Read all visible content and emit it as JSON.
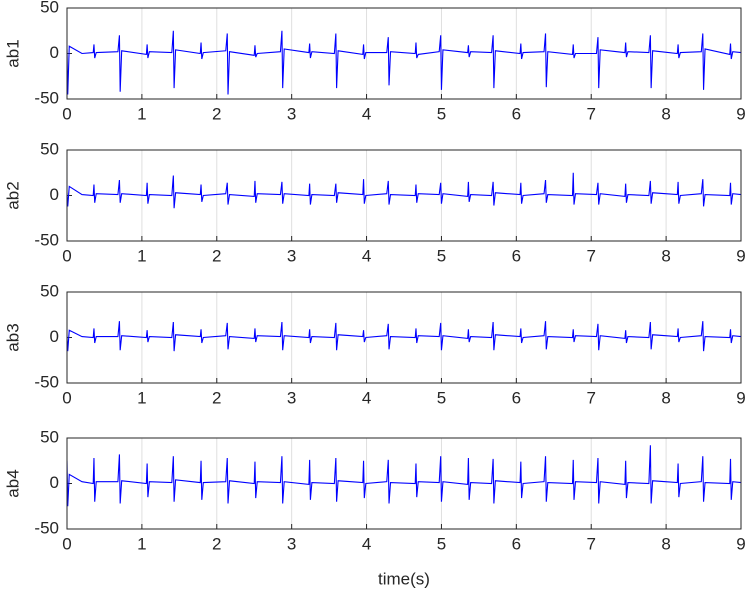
{
  "chart_data": [
    {
      "type": "line",
      "ylabel": "ab1",
      "xlim": [
        0,
        9
      ],
      "xticks": [
        0,
        1,
        2,
        3,
        4,
        5,
        6,
        7,
        8,
        9
      ],
      "ylim": [
        -50,
        50
      ],
      "yticks": [
        -50,
        0,
        50
      ],
      "xgrid": true,
      "color": "#0000ff",
      "x": [
        0,
        0.01,
        0.03,
        0.2,
        0.35,
        0.36,
        0.37,
        0.39,
        0.68,
        0.7,
        0.71,
        0.73,
        1.06,
        1.07,
        1.08,
        1.1,
        1.4,
        1.42,
        1.43,
        1.45,
        1.78,
        1.79,
        1.8,
        1.82,
        2.12,
        2.14,
        2.15,
        2.17,
        2.5,
        2.51,
        2.52,
        2.54,
        2.85,
        2.87,
        2.88,
        2.9,
        3.23,
        3.24,
        3.25,
        3.27,
        3.57,
        3.59,
        3.6,
        3.62,
        3.95,
        3.96,
        3.97,
        3.99,
        4.27,
        4.29,
        4.3,
        4.32,
        4.65,
        4.66,
        4.67,
        4.69,
        4.97,
        4.99,
        5.0,
        5.02,
        5.35,
        5.36,
        5.37,
        5.39,
        5.67,
        5.69,
        5.7,
        5.72,
        6.05,
        6.06,
        6.07,
        6.09,
        6.37,
        6.39,
        6.4,
        6.42,
        6.75,
        6.76,
        6.77,
        6.79,
        7.07,
        7.09,
        7.1,
        7.12,
        7.45,
        7.46,
        7.47,
        7.49,
        7.77,
        7.79,
        7.8,
        7.82,
        8.15,
        8.16,
        8.17,
        8.19,
        8.47,
        8.49,
        8.5,
        8.52,
        8.85,
        8.86,
        8.87,
        8.89,
        9
      ],
      "values": [
        5,
        -45,
        8,
        0,
        1,
        10,
        -5,
        1,
        2,
        20,
        -42,
        3,
        -1,
        10,
        -5,
        2,
        1,
        25,
        -38,
        4,
        0,
        12,
        -6,
        1,
        3,
        22,
        -45,
        2,
        -2,
        9,
        -4,
        0,
        2,
        25,
        -38,
        5,
        1,
        11,
        -5,
        2,
        0,
        22,
        -38,
        3,
        -1,
        10,
        -6,
        1,
        1,
        18,
        -35,
        2,
        0,
        12,
        -5,
        -1,
        2,
        20,
        -40,
        4,
        1,
        9,
        -4,
        2,
        1,
        20,
        -38,
        3,
        0,
        11,
        -6,
        1,
        2,
        22,
        -37,
        2,
        -1,
        10,
        -5,
        0,
        0,
        18,
        -38,
        4,
        1,
        12,
        -4,
        2,
        1,
        20,
        -38,
        3,
        0,
        10,
        -5,
        1,
        2,
        22,
        -40,
        5,
        -1,
        11,
        -6,
        2,
        1
      ]
    },
    {
      "type": "line",
      "ylabel": "ab2",
      "xlim": [
        0,
        9
      ],
      "xticks": [
        0,
        1,
        2,
        3,
        4,
        5,
        6,
        7,
        8,
        9
      ],
      "ylim": [
        -50,
        50
      ],
      "yticks": [
        -50,
        0,
        50
      ],
      "xgrid": true,
      "color": "#0000ff",
      "x": [
        0,
        0.01,
        0.03,
        0.2,
        0.35,
        0.36,
        0.37,
        0.39,
        0.68,
        0.7,
        0.71,
        0.73,
        1.06,
        1.07,
        1.08,
        1.1,
        1.4,
        1.42,
        1.43,
        1.45,
        1.78,
        1.79,
        1.8,
        1.82,
        2.12,
        2.14,
        2.15,
        2.17,
        2.5,
        2.51,
        2.52,
        2.54,
        2.85,
        2.87,
        2.88,
        2.9,
        3.23,
        3.24,
        3.25,
        3.27,
        3.57,
        3.59,
        3.6,
        3.62,
        3.95,
        3.96,
        3.97,
        3.99,
        4.27,
        4.29,
        4.3,
        4.32,
        4.65,
        4.66,
        4.67,
        4.69,
        4.97,
        4.99,
        5.0,
        5.02,
        5.35,
        5.36,
        5.37,
        5.39,
        5.67,
        5.69,
        5.7,
        5.72,
        6.05,
        6.06,
        6.07,
        6.09,
        6.37,
        6.39,
        6.4,
        6.42,
        6.75,
        6.76,
        6.77,
        6.79,
        7.07,
        7.09,
        7.1,
        7.12,
        7.45,
        7.46,
        7.47,
        7.49,
        7.77,
        7.79,
        7.8,
        7.82,
        8.15,
        8.16,
        8.17,
        8.19,
        8.47,
        8.49,
        8.5,
        8.52,
        8.85,
        8.86,
        8.87,
        8.89,
        9
      ],
      "values": [
        3,
        -12,
        10,
        1,
        0,
        12,
        -8,
        2,
        1,
        17,
        -8,
        2,
        0,
        14,
        -9,
        1,
        0,
        22,
        -14,
        3,
        1,
        12,
        -7,
        0,
        2,
        14,
        -10,
        1,
        -1,
        16,
        -8,
        2,
        1,
        15,
        -9,
        2,
        0,
        13,
        -10,
        1,
        0,
        13,
        -8,
        3,
        1,
        18,
        -9,
        0,
        2,
        16,
        -10,
        1,
        0,
        12,
        -8,
        2,
        1,
        14,
        -9,
        2,
        -1,
        15,
        -7,
        1,
        0,
        15,
        -11,
        3,
        1,
        14,
        -9,
        0,
        2,
        17,
        -8,
        1,
        0,
        25,
        -10,
        2,
        1,
        14,
        -10,
        2,
        -1,
        13,
        -8,
        1,
        0,
        16,
        -9,
        3,
        1,
        15,
        -9,
        0,
        2,
        18,
        -12,
        1,
        0,
        14,
        -10,
        2,
        1
      ]
    },
    {
      "type": "line",
      "ylabel": "ab3",
      "xlim": [
        0,
        9
      ],
      "xticks": [
        0,
        1,
        2,
        3,
        4,
        5,
        6,
        7,
        8,
        9
      ],
      "ylim": [
        -50,
        50
      ],
      "yticks": [
        -50,
        0,
        50
      ],
      "xgrid": true,
      "color": "#0000ff",
      "x": [
        0,
        0.01,
        0.03,
        0.2,
        0.35,
        0.36,
        0.37,
        0.39,
        0.68,
        0.7,
        0.71,
        0.73,
        1.06,
        1.07,
        1.08,
        1.1,
        1.4,
        1.42,
        1.43,
        1.45,
        1.78,
        1.79,
        1.8,
        1.82,
        2.12,
        2.14,
        2.15,
        2.17,
        2.5,
        2.51,
        2.52,
        2.54,
        2.85,
        2.87,
        2.88,
        2.9,
        3.23,
        3.24,
        3.25,
        3.27,
        3.57,
        3.59,
        3.6,
        3.62,
        3.95,
        3.96,
        3.97,
        3.99,
        4.27,
        4.29,
        4.3,
        4.32,
        4.65,
        4.66,
        4.67,
        4.69,
        4.97,
        4.99,
        5.0,
        5.02,
        5.35,
        5.36,
        5.37,
        5.39,
        5.67,
        5.69,
        5.7,
        5.72,
        6.05,
        6.06,
        6.07,
        6.09,
        6.37,
        6.39,
        6.4,
        6.42,
        6.75,
        6.76,
        6.77,
        6.79,
        7.07,
        7.09,
        7.1,
        7.12,
        7.45,
        7.46,
        7.47,
        7.49,
        7.77,
        7.79,
        7.8,
        7.82,
        8.15,
        8.16,
        8.17,
        8.19,
        8.47,
        8.49,
        8.5,
        8.52,
        8.85,
        8.86,
        8.87,
        8.89,
        9
      ],
      "values": [
        2,
        -15,
        8,
        1,
        0,
        10,
        -6,
        1,
        1,
        18,
        -14,
        2,
        0,
        8,
        -5,
        1,
        0,
        17,
        -15,
        3,
        1,
        9,
        -6,
        0,
        2,
        16,
        -13,
        1,
        -1,
        10,
        -5,
        2,
        1,
        17,
        -14,
        2,
        0,
        9,
        -6,
        1,
        0,
        16,
        -14,
        3,
        1,
        8,
        -5,
        0,
        2,
        15,
        -13,
        1,
        0,
        10,
        -6,
        2,
        1,
        16,
        -14,
        2,
        -1,
        9,
        -5,
        1,
        0,
        17,
        -14,
        3,
        1,
        10,
        -6,
        0,
        2,
        18,
        -13,
        1,
        0,
        9,
        -5,
        2,
        1,
        15,
        -14,
        2,
        -1,
        8,
        -6,
        1,
        0,
        17,
        -13,
        3,
        1,
        10,
        -5,
        0,
        2,
        18,
        -15,
        1,
        0,
        9,
        -6,
        2,
        1
      ]
    },
    {
      "type": "line",
      "ylabel": "ab4",
      "xlabel": "time(s)",
      "xlim": [
        0,
        9
      ],
      "xticks": [
        0,
        1,
        2,
        3,
        4,
        5,
        6,
        7,
        8,
        9
      ],
      "ylim": [
        -50,
        50
      ],
      "yticks": [
        -50,
        0,
        50
      ],
      "xgrid": true,
      "color": "#0000ff",
      "x": [
        0,
        0.01,
        0.03,
        0.2,
        0.35,
        0.36,
        0.37,
        0.39,
        0.68,
        0.7,
        0.71,
        0.73,
        1.06,
        1.07,
        1.08,
        1.1,
        1.4,
        1.42,
        1.43,
        1.45,
        1.78,
        1.79,
        1.8,
        1.82,
        2.12,
        2.14,
        2.15,
        2.17,
        2.5,
        2.51,
        2.52,
        2.54,
        2.85,
        2.87,
        2.88,
        2.9,
        3.23,
        3.24,
        3.25,
        3.27,
        3.57,
        3.59,
        3.6,
        3.62,
        3.95,
        3.96,
        3.97,
        3.99,
        4.27,
        4.29,
        4.3,
        4.32,
        4.65,
        4.66,
        4.67,
        4.69,
        4.97,
        4.99,
        5.0,
        5.02,
        5.35,
        5.36,
        5.37,
        5.39,
        5.67,
        5.69,
        5.7,
        5.72,
        6.05,
        6.06,
        6.07,
        6.09,
        6.37,
        6.39,
        6.4,
        6.42,
        6.75,
        6.76,
        6.77,
        6.79,
        7.07,
        7.09,
        7.1,
        7.12,
        7.45,
        7.46,
        7.47,
        7.49,
        7.77,
        7.79,
        7.8,
        7.82,
        8.15,
        8.16,
        8.17,
        8.19,
        8.47,
        8.49,
        8.5,
        8.52,
        8.85,
        8.86,
        8.87,
        8.89,
        9
      ],
      "values": [
        25,
        -25,
        10,
        2,
        0,
        28,
        -20,
        2,
        2,
        32,
        -22,
        3,
        0,
        22,
        -15,
        2,
        1,
        30,
        -20,
        4,
        1,
        25,
        -18,
        1,
        2,
        28,
        -22,
        3,
        0,
        24,
        -16,
        2,
        1,
        30,
        -22,
        2,
        -1,
        26,
        -18,
        1,
        0,
        28,
        -20,
        3,
        1,
        25,
        -16,
        0,
        2,
        26,
        -22,
        1,
        0,
        22,
        -15,
        2,
        1,
        30,
        -20,
        2,
        -1,
        28,
        -18,
        1,
        0,
        27,
        -22,
        3,
        1,
        24,
        -16,
        0,
        2,
        30,
        -20,
        1,
        0,
        26,
        -18,
        2,
        1,
        28,
        -22,
        2,
        -1,
        25,
        -16,
        1,
        0,
        42,
        -22,
        3,
        1,
        22,
        -15,
        0,
        2,
        30,
        -20,
        1,
        0,
        27,
        -18,
        2,
        1
      ]
    }
  ]
}
